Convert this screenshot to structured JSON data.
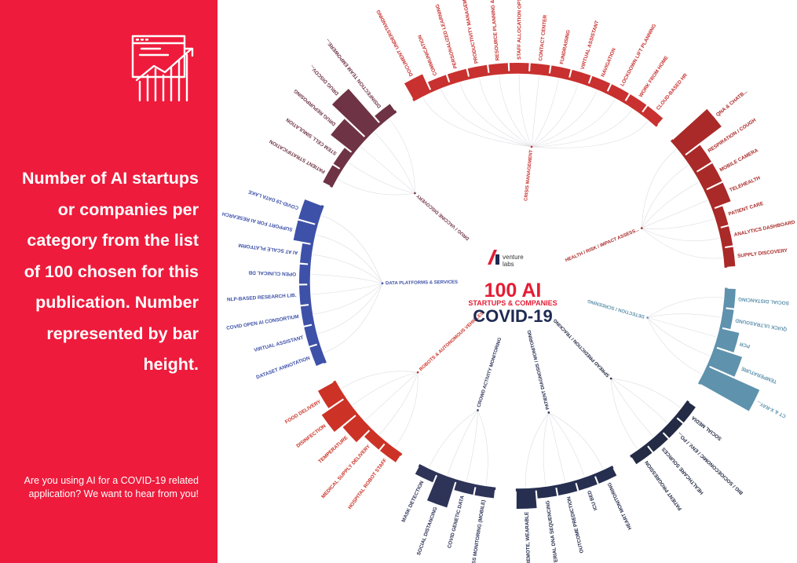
{
  "panel": {
    "description": "Number of AI startups or companies per category from the list of 100 chosen for this publication. Number represented by bar height.",
    "cta": "Are you using AI for a COVID-19 related application? We want to hear from you!"
  },
  "center": {
    "brand_top": "venture",
    "brand_bottom": "labs",
    "headline": "100 AI",
    "subheadline": "STARTUPS & COMPANIES",
    "topic": "COVID-19"
  },
  "colors": {
    "panel_red": "#ee1b3c",
    "crisis_management": "#c8312f",
    "health_risk": "#a92a28",
    "detection_screening": "#5f92ad",
    "spread_prediction": "#232b45",
    "patient_diagnosis": "#262f4f",
    "crowd_activity": "#2e3458",
    "robots_vehicles": "#cc3226",
    "data_platforms": "#3d51a8",
    "drug_vaccine": "#6e3344"
  },
  "chart_data": {
    "type": "radial-bar",
    "value_note": "Number of AI startups or companies per category",
    "groups": [
      {
        "name": "CRISIS MANAGEMENT",
        "color": "#c8312f",
        "categories": [
          "DOCUMENT UNDERSTANDING",
          "COMMUNICATION",
          "PERSONALIZED LEARNING",
          "PRODUCTIVITY MANAGEMENT",
          "RESOURCE PLANNING & FORECAST",
          "STAFF ALLOCATION OPTIMIZATION",
          "CONTACT CENTER",
          "FUNDRAISING",
          "VIRTUAL ASSISTANT",
          "NAVIGATION",
          "LOCKDOWN LIFT PLANNING",
          "WORK FROM HOME",
          "CLOUD-BASED HR"
        ],
        "values": [
          2,
          1,
          1,
          1,
          1,
          1,
          1,
          1,
          1,
          1,
          1,
          1,
          1
        ]
      },
      {
        "name": "HEALTH / RISK / IMPACT ASSESS...",
        "color": "#a92a28",
        "categories": [
          "QNA & CHATB...",
          "RESPIRATION / COUGH",
          "MOBILE CAMERA",
          "TELEHEALTH",
          "PATIENT CARE",
          "ANALYTICS DASHBOARD",
          "SUPPLY DISCOVERY"
        ],
        "values": [
          5,
          2,
          2,
          2,
          1,
          1,
          1
        ]
      },
      {
        "name": "DETECTION / SCREENING",
        "color": "#5f92ad",
        "categories": [
          "SOCIAL DISTANCING",
          "QUICK ULTRASOUND",
          "PCR",
          "TEMPERATURE",
          "CT & X-RAY..."
        ],
        "values": [
          1,
          1,
          2,
          3,
          6
        ]
      },
      {
        "name": "SPREAD PREDICTION / TRACKING",
        "color": "#232b45",
        "categories": [
          "SOCIAL MEDIA",
          "BIG / SOCIOECONOMIC / ENV. / PO...",
          "HEALTHCARE SOURCES",
          "PATIENT PROGRESSION"
        ],
        "values": [
          1,
          1,
          1,
          1
        ]
      },
      {
        "name": "PATIENT DIAGNOSIS / MONITORING",
        "color": "#262f4f",
        "categories": [
          "HEART MONITORING",
          "ICU BED",
          "OUTCOME PREDICTION",
          "BACTERIAL DNA SEQUENCING",
          "REMOTE, WEARABLE"
        ],
        "values": [
          1,
          1,
          1,
          1,
          2
        ]
      },
      {
        "name": "CROWD ACTIVITY MONITORING",
        "color": "#2e3458",
        "categories": [
          "MASS MONITORING (MOBILE)",
          "COVID GENETIC DATA",
          "SOCIAL DISTANCING",
          "MASK DETECTION"
        ],
        "values": [
          1,
          1,
          3,
          1
        ]
      },
      {
        "name": "ROBOTS & AUTONOMOUS VEHICLES",
        "color": "#cc3226",
        "categories": [
          "HOSPITAL ROBOT STAFF",
          "MEDICAL SUPPLY DELIVERY",
          "TEMPERATURE",
          "DISINFECTION",
          "FOOD DELIVERY"
        ],
        "values": [
          1,
          1,
          2,
          3,
          2
        ]
      },
      {
        "name": "DATA PLATFORMS & SERVICES",
        "color": "#3d51a8",
        "categories": [
          "DATASET ANNOTATION",
          "VIRTUAL ASSISTANT",
          "COVID OPEN AI CONSORTIUM",
          "NLP-BASED RESEARCH LIB.",
          "OPEN CLINICAL DB",
          "AI AT SCALE PLATFORM",
          "SUPPORT FOR AI RESEARCH",
          "COVID-19 DATA LAKE"
        ],
        "values": [
          1,
          1,
          1,
          1,
          1,
          1,
          2,
          2
        ]
      },
      {
        "name": "DRUG / VACCINE DISCOVERY",
        "color": "#6e3344",
        "categories": [
          "PATIENT STRATIFICATION",
          "STEM CELL SIMULATION",
          "DRUG REPURPOSING",
          "DRUG DISCOV...",
          "DISINFECTION TEAM EMPOWERE..."
        ],
        "values": [
          1,
          1,
          3,
          5,
          1
        ]
      }
    ]
  }
}
